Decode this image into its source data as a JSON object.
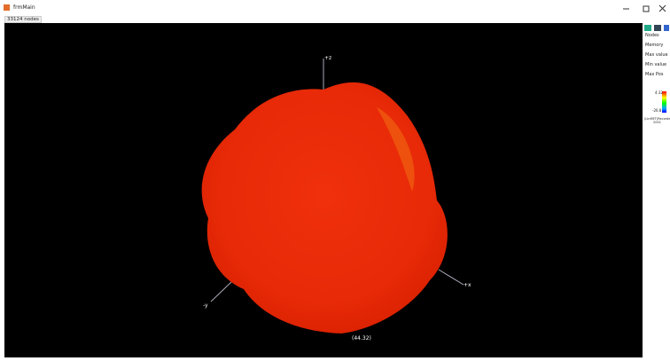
{
  "window": {
    "title": "frmMain",
    "status": "33124 nodes"
  },
  "viewport": {
    "axes": [
      "+z",
      "-y",
      "+x"
    ],
    "readout": "(44.32)"
  },
  "side_panel": {
    "items": [
      "Nodes",
      "Memory",
      "Max value",
      "Min value",
      "Max Pos"
    ],
    "legend": {
      "max": "4.32",
      "min": "-26.8",
      "caption": "(LinMET)Recorded 2001"
    }
  }
}
